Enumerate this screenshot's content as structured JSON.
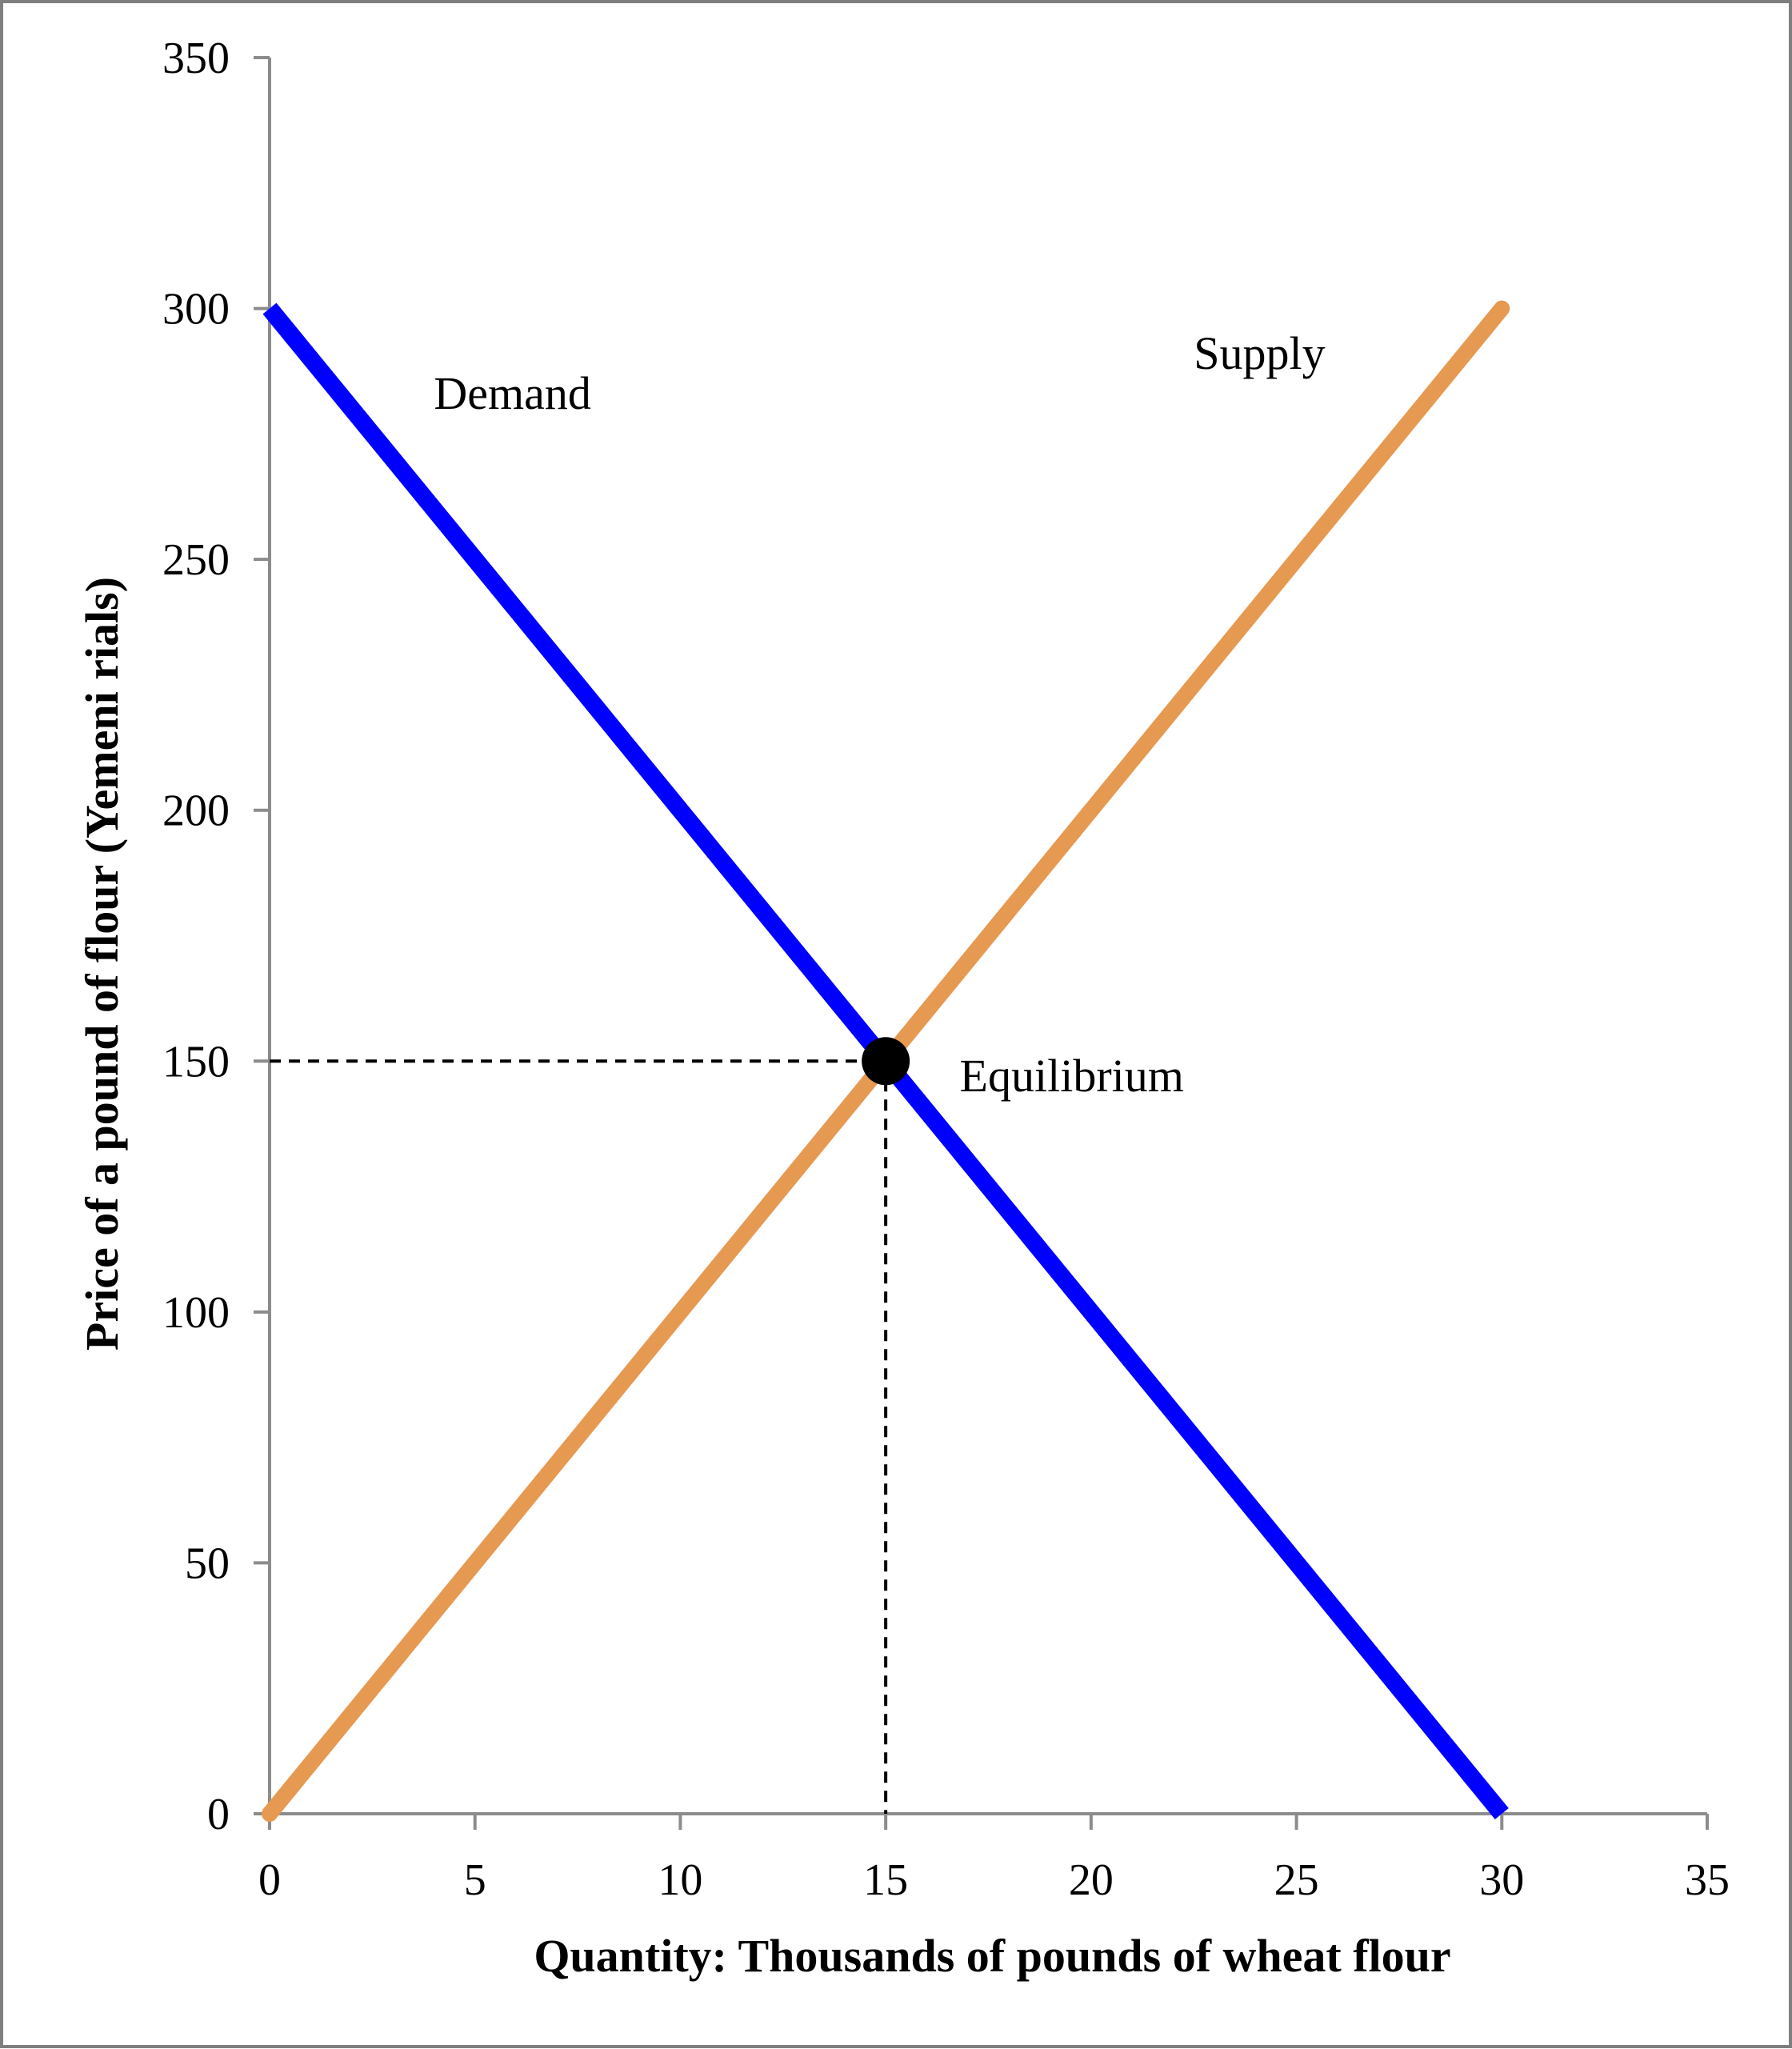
{
  "chart_data": {
    "type": "line",
    "title": "",
    "xlabel": "Quantity: Thousands of pounds of wheat flour",
    "ylabel": "Price of a pound of flour (Yemeni rials)",
    "xlim": [
      0,
      35
    ],
    "ylim": [
      0,
      350
    ],
    "x_ticks": [
      0,
      5,
      10,
      15,
      20,
      25,
      30,
      35
    ],
    "y_ticks": [
      0,
      50,
      100,
      150,
      200,
      250,
      300,
      350
    ],
    "grid": false,
    "legend": "none",
    "series": [
      {
        "name": "Demand",
        "color": "#0000ff",
        "points": [
          [
            0,
            300
          ],
          [
            30,
            0
          ]
        ]
      },
      {
        "name": "Supply",
        "color": "#e69950",
        "points": [
          [
            0,
            0
          ],
          [
            30,
            300
          ]
        ]
      }
    ],
    "equilibrium": {
      "label": "Equilibrium",
      "x": 15,
      "y": 150
    },
    "annotations": [
      {
        "text": "Demand",
        "x": 4,
        "y": 280
      },
      {
        "text": "Supply",
        "x": 22.5,
        "y": 288
      },
      {
        "text": "Equilibrium",
        "x": 16.8,
        "y": 144
      }
    ]
  }
}
